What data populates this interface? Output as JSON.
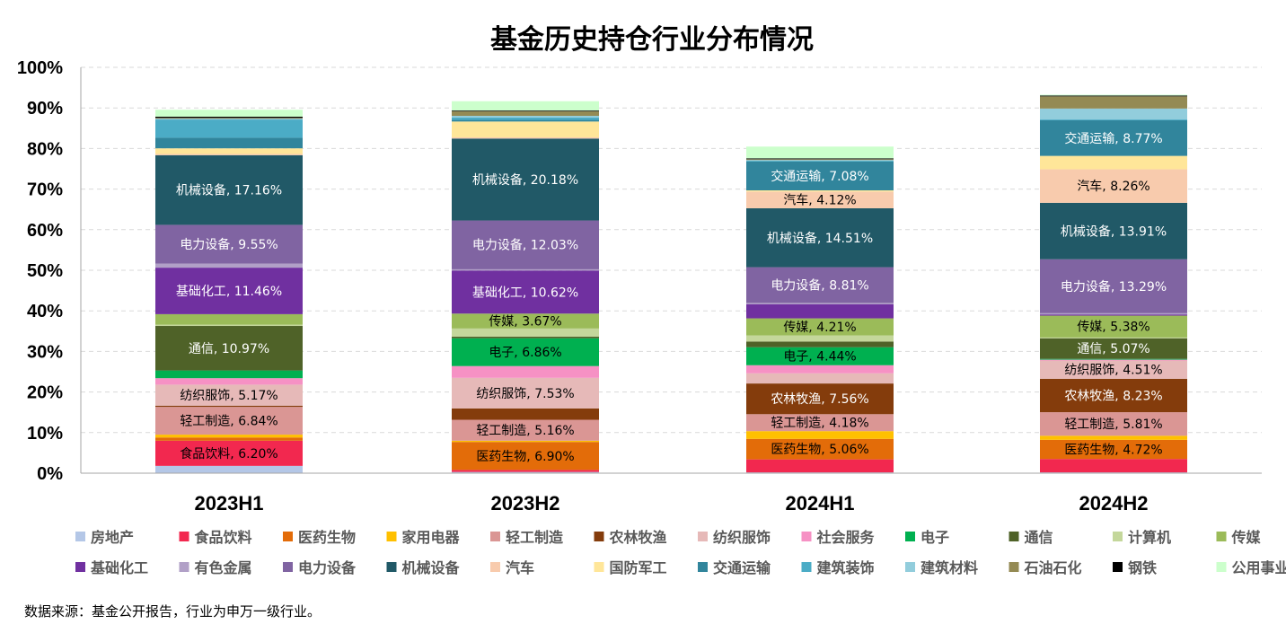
{
  "chart_data": {
    "type": "bar",
    "stacked": true,
    "title": "基金历史持仓行业分布情况",
    "categories": [
      "2023H1",
      "2023H2",
      "2024H1",
      "2024H2"
    ],
    "ylim": [
      0,
      100
    ],
    "y_ticks": [
      "0%",
      "10%",
      "20%",
      "30%",
      "40%",
      "50%",
      "60%",
      "70%",
      "80%",
      "90%",
      "100%"
    ],
    "grid": true,
    "legend_position": "bottom",
    "series": [
      {
        "name": "房地产",
        "color": "#B4C7E7",
        "values": [
          1.8,
          0.3,
          0.2,
          0.2
        ]
      },
      {
        "name": "食品饮料",
        "color": "#F2284F",
        "values": [
          6.2,
          0.5,
          3.2,
          3.3
        ]
      },
      {
        "name": "医药生物",
        "color": "#E36C09",
        "values": [
          0.8,
          6.9,
          5.06,
          4.72
        ]
      },
      {
        "name": "家用电器",
        "color": "#FFC000",
        "values": [
          0.7,
          0.3,
          1.9,
          1.0
        ]
      },
      {
        "name": "轻工制造",
        "color": "#DA9694",
        "values": [
          6.84,
          5.16,
          4.18,
          5.81
        ]
      },
      {
        "name": "农林牧渔",
        "color": "#843C0C",
        "values": [
          0.3,
          2.8,
          7.56,
          8.23
        ]
      },
      {
        "name": "纺织服饰",
        "color": "#E6B9B8",
        "values": [
          5.17,
          7.53,
          2.5,
          4.51
        ]
      },
      {
        "name": "社会服务",
        "color": "#F691C4",
        "values": [
          1.6,
          2.9,
          2.0,
          0.2
        ]
      },
      {
        "name": "电子",
        "color": "#00B050",
        "values": [
          1.9,
          6.86,
          4.44,
          0.2
        ]
      },
      {
        "name": "通信",
        "color": "#4F6228",
        "values": [
          10.97,
          0.4,
          1.4,
          5.07
        ]
      },
      {
        "name": "计算机",
        "color": "#C4D79B",
        "values": [
          0.3,
          2.0,
          1.5,
          0.2
        ]
      },
      {
        "name": "传媒",
        "color": "#9BBB59",
        "values": [
          2.6,
          3.67,
          4.21,
          5.38
        ]
      },
      {
        "name": "基础化工",
        "color": "#7030A0",
        "values": [
          11.46,
          10.62,
          3.5,
          0.3
        ]
      },
      {
        "name": "有色金属",
        "color": "#B1A0C7",
        "values": [
          1.0,
          0.3,
          0.3,
          0.3
        ]
      },
      {
        "name": "电力设备",
        "color": "#8064A2",
        "values": [
          9.55,
          12.03,
          8.81,
          13.29
        ]
      },
      {
        "name": "机械设备",
        "color": "#215967",
        "values": [
          17.16,
          20.18,
          14.51,
          13.91
        ]
      },
      {
        "name": "汽车",
        "color": "#F8CBAD",
        "values": [
          0.3,
          0.3,
          4.12,
          8.26
        ]
      },
      {
        "name": "国防军工",
        "color": "#FFE699",
        "values": [
          1.4,
          3.9,
          0.3,
          3.3
        ]
      },
      {
        "name": "交通运输",
        "color": "#31859C",
        "values": [
          2.6,
          0.4,
          7.08,
          8.77
        ]
      },
      {
        "name": "建筑装饰",
        "color": "#4BACC6",
        "values": [
          4.5,
          0.6,
          0.2,
          0.2
        ]
      },
      {
        "name": "建筑材料",
        "color": "#92CDDC",
        "values": [
          0.2,
          0.4,
          0.2,
          2.7
        ]
      },
      {
        "name": "石油石化",
        "color": "#948A54",
        "values": [
          0.2,
          1.1,
          0.2,
          3.0
        ]
      },
      {
        "name": "钢铁",
        "color": "#000000",
        "values": [
          0.3,
          0.2,
          0.2,
          0.2
        ]
      },
      {
        "name": "公用事业",
        "color": "#CCFFCC",
        "values": [
          1.7,
          2.3,
          2.9,
          0.2
        ]
      }
    ],
    "data_labels": [
      {
        "category": 0,
        "series": 1,
        "text": "食品饮料, 6.20%",
        "color": "#000000"
      },
      {
        "category": 0,
        "series": 4,
        "text": "轻工制造, 6.84%",
        "color": "#000000"
      },
      {
        "category": 0,
        "series": 6,
        "text": "纺织服饰, 5.17%",
        "color": "#000000"
      },
      {
        "category": 0,
        "series": 9,
        "text": "通信, 10.97%",
        "color": "#ffffff"
      },
      {
        "category": 0,
        "series": 12,
        "text": "基础化工, 11.46%",
        "color": "#ffffff"
      },
      {
        "category": 0,
        "series": 14,
        "text": "电力设备, 9.55%",
        "color": "#ffffff"
      },
      {
        "category": 0,
        "series": 15,
        "text": "机械设备, 17.16%",
        "color": "#ffffff"
      },
      {
        "category": 1,
        "series": 2,
        "text": "医药生物, 6.90%",
        "color": "#000000"
      },
      {
        "category": 1,
        "series": 4,
        "text": "轻工制造, 5.16%",
        "color": "#000000"
      },
      {
        "category": 1,
        "series": 6,
        "text": "纺织服饰, 7.53%",
        "color": "#000000"
      },
      {
        "category": 1,
        "series": 8,
        "text": "电子, 6.86%",
        "color": "#000000"
      },
      {
        "category": 1,
        "series": 11,
        "text": "传媒, 3.67%",
        "color": "#000000"
      },
      {
        "category": 1,
        "series": 12,
        "text": "基础化工, 10.62%",
        "color": "#ffffff"
      },
      {
        "category": 1,
        "series": 14,
        "text": "电力设备, 12.03%",
        "color": "#ffffff"
      },
      {
        "category": 1,
        "series": 15,
        "text": "机械设备, 20.18%",
        "color": "#ffffff"
      },
      {
        "category": 2,
        "series": 2,
        "text": "医药生物, 5.06%",
        "color": "#000000"
      },
      {
        "category": 2,
        "series": 4,
        "text": "轻工制造, 4.18%",
        "color": "#000000"
      },
      {
        "category": 2,
        "series": 5,
        "text": "农林牧渔, 7.56%",
        "color": "#ffffff"
      },
      {
        "category": 2,
        "series": 8,
        "text": "电子, 4.44%",
        "color": "#000000"
      },
      {
        "category": 2,
        "series": 11,
        "text": "传媒, 4.21%",
        "color": "#000000"
      },
      {
        "category": 2,
        "series": 14,
        "text": "电力设备, 8.81%",
        "color": "#ffffff"
      },
      {
        "category": 2,
        "series": 15,
        "text": "机械设备, 14.51%",
        "color": "#ffffff"
      },
      {
        "category": 2,
        "series": 16,
        "text": "汽车, 4.12%",
        "color": "#000000"
      },
      {
        "category": 2,
        "series": 18,
        "text": "交通运输, 7.08%",
        "color": "#ffffff"
      },
      {
        "category": 3,
        "series": 2,
        "text": "医药生物, 4.72%",
        "color": "#000000"
      },
      {
        "category": 3,
        "series": 4,
        "text": "轻工制造, 5.81%",
        "color": "#000000"
      },
      {
        "category": 3,
        "series": 5,
        "text": "农林牧渔, 8.23%",
        "color": "#ffffff"
      },
      {
        "category": 3,
        "series": 6,
        "text": "纺织服饰, 4.51%",
        "color": "#000000"
      },
      {
        "category": 3,
        "series": 9,
        "text": "通信, 5.07%",
        "color": "#ffffff"
      },
      {
        "category": 3,
        "series": 11,
        "text": "传媒, 5.38%",
        "color": "#000000"
      },
      {
        "category": 3,
        "series": 14,
        "text": "电力设备, 13.29%",
        "color": "#ffffff"
      },
      {
        "category": 3,
        "series": 15,
        "text": "机械设备, 13.91%",
        "color": "#ffffff"
      },
      {
        "category": 3,
        "series": 16,
        "text": "汽车, 8.26%",
        "color": "#000000"
      },
      {
        "category": 3,
        "series": 18,
        "text": "交通运输, 8.77%",
        "color": "#ffffff"
      }
    ]
  },
  "source_note": "数据来源：基金公开报告，行业为申万一级行业。"
}
